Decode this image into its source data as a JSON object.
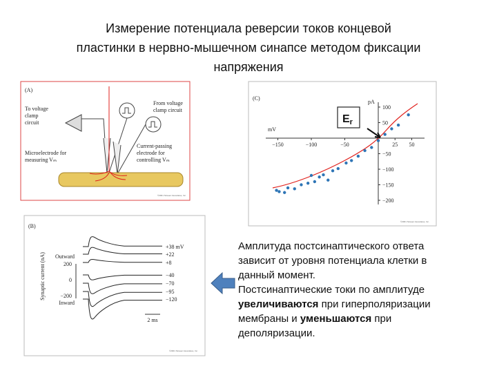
{
  "title": {
    "lines": [
      "Измерение потенциала реверсии токов концевой",
      "пластинки в нервно-мышечном синапсе методом фиксации",
      "напряжения"
    ]
  },
  "panel_a": {
    "label": "(A)",
    "to_circuit": [
      "To voltage",
      "clamp",
      "circuit"
    ],
    "from_circuit": [
      "From voltage",
      "clamp circuit"
    ],
    "microelectrode": [
      "Microelectrode for",
      "measuring Vₘ"
    ],
    "current_electrode": [
      "Current-passing",
      "electrode for",
      "controlling Vₘ"
    ],
    "copyright": "©2001 Sinauer Associates, Inc."
  },
  "panel_c": {
    "label": "(C)",
    "y_unit": "pA",
    "x_unit": "mV",
    "marker": "E",
    "marker_sub": "r",
    "xticks": [
      {
        "value": -150,
        "label": "−150"
      },
      {
        "value": -100,
        "label": "−100"
      },
      {
        "value": -50,
        "label": "−50"
      },
      25,
      50
    ],
    "yticks": [
      100,
      50,
      {
        "value": -50,
        "label": "−50"
      },
      {
        "value": -100,
        "label": "−100"
      },
      {
        "value": -150,
        "label": "−150"
      },
      {
        "value": -200,
        "label": "−200"
      }
    ],
    "point_color": "#2e75b6",
    "points": [
      {
        "x": -152,
        "y": -168
      },
      {
        "x": -148,
        "y": -172
      },
      {
        "x": -140,
        "y": -175
      },
      {
        "x": -135,
        "y": -160
      },
      {
        "x": -125,
        "y": -163
      },
      {
        "x": -115,
        "y": -150
      },
      {
        "x": -105,
        "y": -145
      },
      {
        "x": -100,
        "y": -120
      },
      {
        "x": -95,
        "y": -140
      },
      {
        "x": -88,
        "y": -125
      },
      {
        "x": -82,
        "y": -118
      },
      {
        "x": -75,
        "y": -135
      },
      {
        "x": -68,
        "y": -105
      },
      {
        "x": -60,
        "y": -98
      },
      {
        "x": -48,
        "y": -80
      },
      {
        "x": -40,
        "y": -72
      },
      {
        "x": -30,
        "y": -58
      },
      {
        "x": -20,
        "y": -40
      },
      {
        "x": -10,
        "y": -30
      },
      {
        "x": 0,
        "y": -8
      },
      {
        "x": 10,
        "y": 12
      },
      {
        "x": 20,
        "y": 30
      },
      {
        "x": 30,
        "y": 42
      },
      {
        "x": 45,
        "y": 75
      }
    ],
    "copyright": "©2001 Sinauer Associates, Inc."
  },
  "panel_b": {
    "label": "(B)",
    "y_title": "Synaptic current (nA)",
    "outward": "Outward",
    "inward": "Inward",
    "ticks": [
      "200",
      "0",
      "−200"
    ],
    "voltages": [
      "+38 mV",
      "+22",
      "+8",
      "−40",
      "−70",
      "−95",
      "−120"
    ],
    "scale": "2 ms",
    "copyright": "©2001 Sinauer Associates, Inc."
  },
  "text": {
    "lines": [
      [
        {
          "text": "Амплитуда постсинаптического ответа",
          "bold": false
        }
      ],
      [
        {
          "text": "зависит от уровня потенциала клетки в",
          "bold": false
        }
      ],
      [
        {
          "text": "данный момент.",
          "bold": false
        }
      ],
      [
        {
          "text": "Постсинаптические токи по амплитуде",
          "bold": false
        }
      ],
      [
        {
          "text": "увеличиваются",
          "bold": true
        },
        {
          "text": " при гиперполяризации",
          "bold": false
        }
      ],
      [
        {
          "text": "мембраны и ",
          "bold": false
        },
        {
          "text": "уменьшаются",
          "bold": true
        },
        {
          "text": " при",
          "bold": false
        }
      ],
      [
        {
          "text": "деполяризации.",
          "bold": false
        }
      ]
    ]
  }
}
